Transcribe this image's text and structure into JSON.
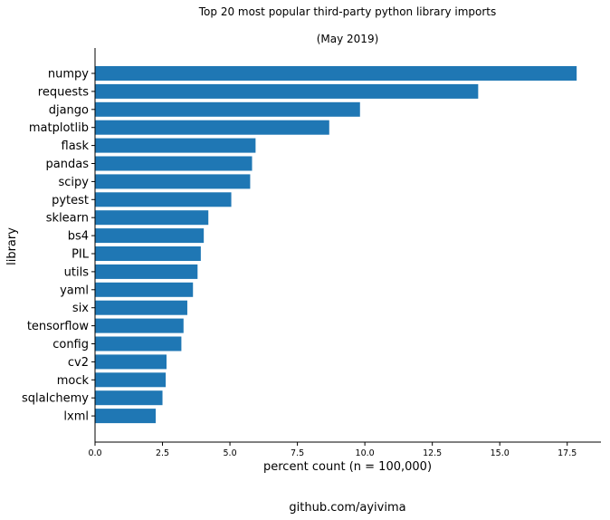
{
  "chart_data": {
    "type": "bar",
    "orientation": "horizontal",
    "title": "Top 20 most popular third-party python library imports",
    "subtitle": "(May 2019)",
    "xlabel": "percent count (n = 100,000)",
    "ylabel": "library",
    "caption": "github.com/ayivima",
    "categories": [
      "numpy",
      "requests",
      "django",
      "matplotlib",
      "flask",
      "pandas",
      "scipy",
      "pytest",
      "sklearn",
      "bs4",
      "PIL",
      "utils",
      "yaml",
      "six",
      "tensorflow",
      "config",
      "cv2",
      "mock",
      "sqlalchemy",
      "lxml"
    ],
    "values": [
      17.85,
      14.2,
      9.82,
      8.68,
      5.95,
      5.82,
      5.75,
      5.05,
      4.2,
      4.03,
      3.92,
      3.8,
      3.63,
      3.42,
      3.28,
      3.2,
      2.65,
      2.62,
      2.5,
      2.25
    ],
    "xticks": [
      "0.0",
      "2.5",
      "5.0",
      "7.5",
      "10.0",
      "12.5",
      "15.0",
      "17.5"
    ],
    "xlim": [
      0,
      18.75
    ],
    "grid": false,
    "bar_color": "#1f77b4"
  }
}
